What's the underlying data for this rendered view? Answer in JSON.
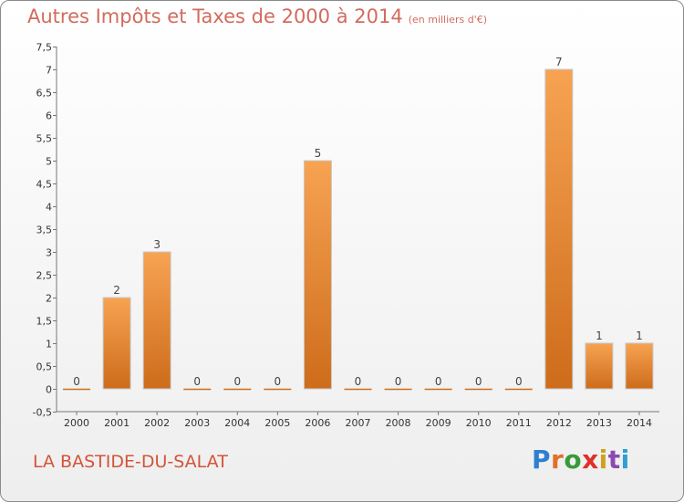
{
  "header": {
    "title": "Autres Impôts et Taxes de 2000 à 2014",
    "unit": "(en milliers d'€)"
  },
  "footer": {
    "city": "LA BASTIDE-DU-SALAT",
    "logo": "Proxiti"
  },
  "colors": {
    "bar_top": "#f7a352",
    "bar_bottom": "#cd6c1b",
    "title": "#d26b5e",
    "city": "#d2543a",
    "logo_letters": [
      "#2f7fd0",
      "#e0702a",
      "#3a9a3a",
      "#e0302a",
      "#d0a020",
      "#8a4ab0",
      "#2f9fd0"
    ]
  },
  "chart_data": {
    "type": "bar",
    "categories": [
      "2000",
      "2001",
      "2002",
      "2003",
      "2004",
      "2005",
      "2006",
      "2007",
      "2008",
      "2009",
      "2010",
      "2011",
      "2012",
      "2013",
      "2014"
    ],
    "values": [
      0,
      2,
      3,
      0,
      0,
      0,
      5,
      0,
      0,
      0,
      0,
      0,
      7,
      1,
      1
    ],
    "data_labels": [
      "0",
      "2",
      "3",
      "0",
      "0",
      "0",
      "5",
      "0",
      "0",
      "0",
      "0",
      "0",
      "7",
      "1",
      "1"
    ],
    "y_ticks": [
      "-0,5",
      "0",
      "0,5",
      "1",
      "1,5",
      "2",
      "2,5",
      "3",
      "3,5",
      "4",
      "4,5",
      "5",
      "5,5",
      "6",
      "6,5",
      "7",
      "7,5"
    ],
    "y_tick_values": [
      -0.5,
      0,
      0.5,
      1,
      1.5,
      2,
      2.5,
      3,
      3.5,
      4,
      4.5,
      5,
      5.5,
      6,
      6.5,
      7,
      7.5
    ],
    "ylim": [
      -0.5,
      7.5
    ],
    "grid": false,
    "legend": "none"
  }
}
